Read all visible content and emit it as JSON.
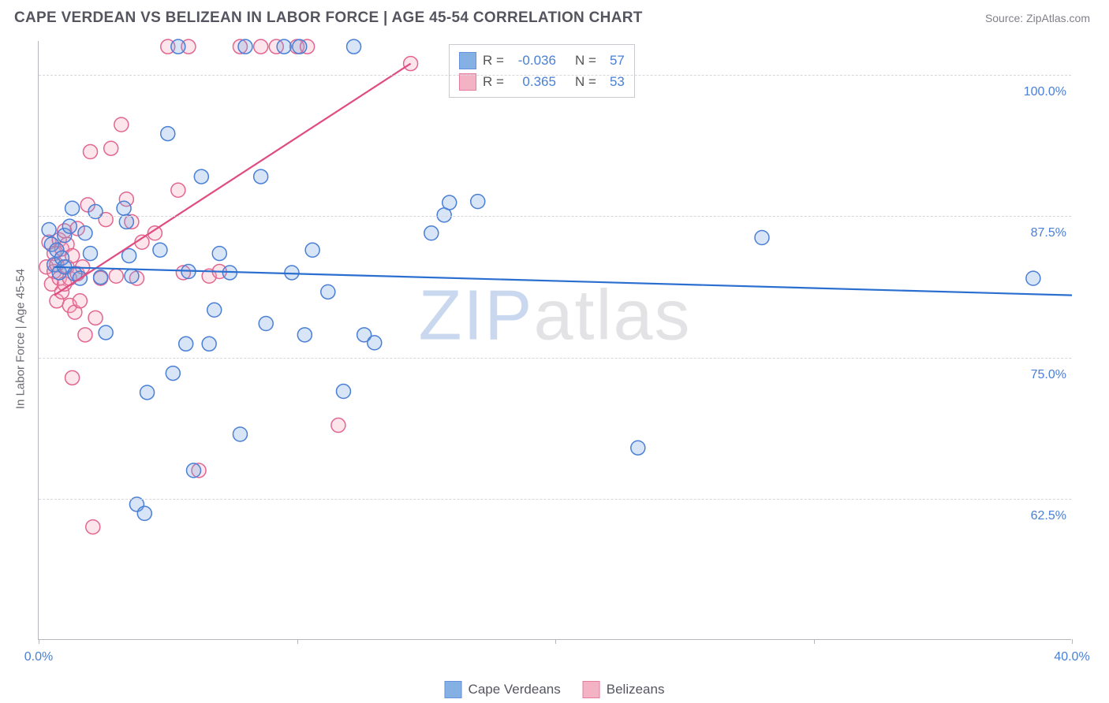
{
  "header": {
    "title": "CAPE VERDEAN VS BELIZEAN IN LABOR FORCE | AGE 45-54 CORRELATION CHART",
    "source": "Source: ZipAtlas.com"
  },
  "chart": {
    "type": "scatter",
    "ylabel": "In Labor Force | Age 45-54",
    "background_color": "#ffffff",
    "grid_color": "#d6d6dc",
    "axis_color": "#b5b5bc",
    "xlim": [
      0,
      40
    ],
    "ylim": [
      50,
      103
    ],
    "x_ticks": [
      0,
      10,
      20,
      30,
      40
    ],
    "x_tick_labels": [
      "0.0%",
      "",
      "",
      "",
      "40.0%"
    ],
    "y_ticks": [
      62.5,
      75.0,
      87.5,
      100.0
    ],
    "y_tick_labels": [
      "62.5%",
      "75.0%",
      "87.5%",
      "100.0%"
    ],
    "marker_radius": 9,
    "marker_stroke_width": 1.5,
    "marker_fill_opacity": 0.28,
    "trendline_width": 2.2,
    "label_fontsize": 16,
    "label_color": "#4a7fd6",
    "ylabel_fontsize": 15,
    "ylabel_color": "#6a6a72"
  },
  "series": {
    "cape_verdeans": {
      "label": "Cape Verdeans",
      "color": "#6fa3e0",
      "stroke": "#4a7fd6",
      "trend_color": "#2a6fd0",
      "R": "-0.036",
      "N": "57",
      "trendline": {
        "x1": 0.6,
        "y1": 83.0,
        "x2": 40.0,
        "y2": 80.5
      },
      "points": [
        [
          0.4,
          86.3
        ],
        [
          0.5,
          85.0
        ],
        [
          0.6,
          83.2
        ],
        [
          0.7,
          84.5
        ],
        [
          0.8,
          82.5
        ],
        [
          0.9,
          83.8
        ],
        [
          1.0,
          85.8
        ],
        [
          1.0,
          83.0
        ],
        [
          1.2,
          86.6
        ],
        [
          1.3,
          88.2
        ],
        [
          1.4,
          82.4
        ],
        [
          1.6,
          82.0
        ],
        [
          1.8,
          86.0
        ],
        [
          2.0,
          84.2
        ],
        [
          2.2,
          87.9
        ],
        [
          2.4,
          82.1
        ],
        [
          2.6,
          77.2
        ],
        [
          3.3,
          88.2
        ],
        [
          3.4,
          87.0
        ],
        [
          3.5,
          84.0
        ],
        [
          3.6,
          82.2
        ],
        [
          3.8,
          62.0
        ],
        [
          4.1,
          61.2
        ],
        [
          4.2,
          71.9
        ],
        [
          4.7,
          84.5
        ],
        [
          5.2,
          73.6
        ],
        [
          5.4,
          102.5
        ],
        [
          5.7,
          76.2
        ],
        [
          5.8,
          82.6
        ],
        [
          6.0,
          65.0
        ],
        [
          6.3,
          91.0
        ],
        [
          6.6,
          76.2
        ],
        [
          6.8,
          79.2
        ],
        [
          7.0,
          84.2
        ],
        [
          7.4,
          82.5
        ],
        [
          7.8,
          68.2
        ],
        [
          8.0,
          102.5
        ],
        [
          8.6,
          91.0
        ],
        [
          8.8,
          78.0
        ],
        [
          9.5,
          102.5
        ],
        [
          9.8,
          82.5
        ],
        [
          10.1,
          102.5
        ],
        [
          10.3,
          77.0
        ],
        [
          10.6,
          84.5
        ],
        [
          11.2,
          80.8
        ],
        [
          11.8,
          72.0
        ],
        [
          12.2,
          102.5
        ],
        [
          12.6,
          77.0
        ],
        [
          13.0,
          76.3
        ],
        [
          15.2,
          86.0
        ],
        [
          15.7,
          87.6
        ],
        [
          15.9,
          88.7
        ],
        [
          17.0,
          88.8
        ],
        [
          23.2,
          67.0
        ],
        [
          28.0,
          85.6
        ],
        [
          38.5,
          82.0
        ],
        [
          5.0,
          94.8
        ]
      ]
    },
    "belizeans": {
      "label": "Belizeans",
      "color": "#f3a6bb",
      "stroke": "#e26690",
      "trend_color": "#e04c82",
      "R": "0.365",
      "N": "53",
      "trendline": {
        "x1": 0.6,
        "y1": 80.5,
        "x2": 14.4,
        "y2": 101.0
      },
      "points": [
        [
          0.3,
          83.0
        ],
        [
          0.4,
          85.2
        ],
        [
          0.5,
          81.5
        ],
        [
          0.6,
          82.6
        ],
        [
          0.6,
          84.2
        ],
        [
          0.7,
          80.0
        ],
        [
          0.7,
          83.2
        ],
        [
          0.8,
          85.4
        ],
        [
          0.8,
          82.0
        ],
        [
          0.9,
          80.8
        ],
        [
          0.9,
          84.6
        ],
        [
          1.0,
          86.2
        ],
        [
          1.0,
          81.5
        ],
        [
          1.1,
          83.0
        ],
        [
          1.1,
          85.0
        ],
        [
          1.2,
          79.6
        ],
        [
          1.2,
          82.0
        ],
        [
          1.3,
          84.0
        ],
        [
          1.3,
          73.2
        ],
        [
          1.4,
          79.0
        ],
        [
          1.5,
          82.4
        ],
        [
          1.5,
          86.4
        ],
        [
          1.6,
          80.0
        ],
        [
          1.7,
          83.0
        ],
        [
          1.8,
          77.0
        ],
        [
          1.9,
          88.5
        ],
        [
          2.0,
          93.2
        ],
        [
          2.1,
          60.0
        ],
        [
          2.2,
          78.5
        ],
        [
          2.4,
          82.0
        ],
        [
          2.6,
          87.2
        ],
        [
          2.8,
          93.5
        ],
        [
          3.0,
          82.2
        ],
        [
          3.2,
          95.6
        ],
        [
          3.4,
          89.0
        ],
        [
          3.6,
          87.0
        ],
        [
          3.8,
          82.0
        ],
        [
          4.0,
          85.2
        ],
        [
          4.5,
          86.0
        ],
        [
          5.0,
          102.5
        ],
        [
          5.4,
          89.8
        ],
        [
          5.6,
          82.5
        ],
        [
          5.8,
          102.5
        ],
        [
          6.2,
          65.0
        ],
        [
          6.6,
          82.2
        ],
        [
          7.0,
          82.6
        ],
        [
          7.8,
          102.5
        ],
        [
          8.6,
          102.5
        ],
        [
          9.2,
          102.5
        ],
        [
          10.0,
          102.5
        ],
        [
          10.4,
          102.5
        ],
        [
          11.6,
          69.0
        ],
        [
          14.4,
          101.0
        ]
      ]
    }
  },
  "legend_box": {
    "R_label": "R =",
    "N_label": "N ="
  },
  "bottom_legend": {
    "items": [
      "cape_verdeans",
      "belizeans"
    ]
  },
  "watermark": {
    "z": "ZIP",
    "rest": "atlas"
  }
}
